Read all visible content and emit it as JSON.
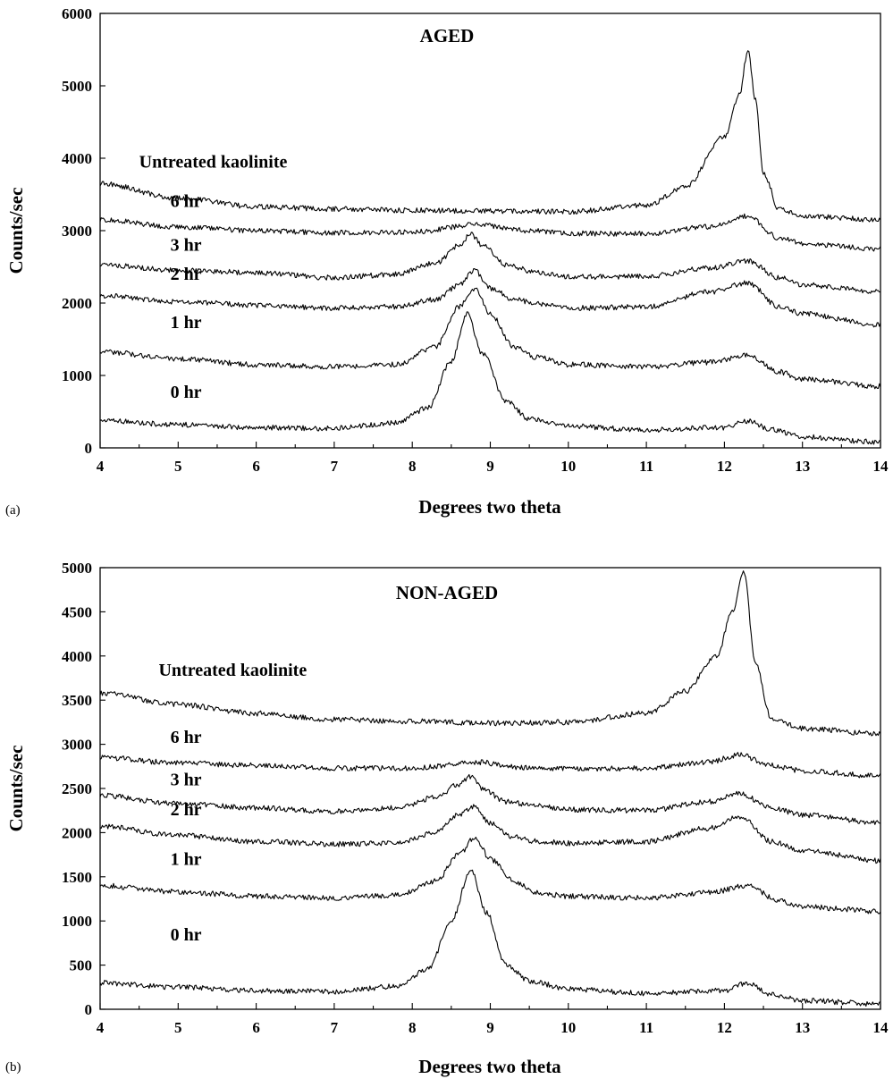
{
  "chart_data": [
    {
      "type": "line",
      "panel_label": "(a)",
      "title": "AGED",
      "xlabel": "Degrees two theta",
      "ylabel": "Counts/sec",
      "xlim": [
        4,
        14
      ],
      "ylim": [
        0,
        6000
      ],
      "x_ticks": [
        4,
        5,
        6,
        7,
        8,
        9,
        10,
        11,
        12,
        13,
        14
      ],
      "y_ticks": [
        0,
        1000,
        2000,
        3000,
        4000,
        5000,
        6000
      ],
      "grid": false,
      "series": [
        {
          "name": "Untreated kaolinite",
          "x": [
            4,
            5,
            6,
            7,
            8,
            9,
            10,
            11,
            11.5,
            12,
            12.2,
            12.3,
            12.4,
            12.5,
            12.7,
            13,
            14
          ],
          "y": [
            3650,
            3450,
            3330,
            3300,
            3280,
            3270,
            3260,
            3350,
            3600,
            4300,
            4900,
            5500,
            4800,
            3800,
            3300,
            3200,
            3150
          ]
        },
        {
          "name": "6 hr",
          "x": [
            4,
            5,
            6,
            7,
            8,
            8.8,
            9.5,
            10,
            11,
            11.8,
            12.3,
            12.7,
            13,
            14
          ],
          "y": [
            3150,
            3050,
            3000,
            2970,
            2980,
            3080,
            3000,
            2960,
            2960,
            3050,
            3200,
            2900,
            2820,
            2750
          ]
        },
        {
          "name": "3 hr",
          "x": [
            4,
            5,
            6,
            7,
            7.8,
            8.3,
            8.6,
            8.75,
            8.9,
            9.2,
            9.6,
            10,
            11,
            11.8,
            12.3,
            12.7,
            13,
            14
          ],
          "y": [
            2530,
            2450,
            2420,
            2350,
            2400,
            2550,
            2800,
            2950,
            2800,
            2530,
            2420,
            2360,
            2370,
            2480,
            2580,
            2350,
            2250,
            2160
          ]
        },
        {
          "name": "2 hr",
          "x": [
            4,
            5,
            6,
            7,
            7.8,
            8.3,
            8.6,
            8.8,
            9,
            9.3,
            9.6,
            10,
            11,
            11.8,
            12.3,
            12.7,
            13,
            14
          ],
          "y": [
            2100,
            2020,
            1970,
            1930,
            1950,
            2050,
            2250,
            2450,
            2200,
            2050,
            1990,
            1930,
            1950,
            2150,
            2280,
            1950,
            1850,
            1700
          ]
        },
        {
          "name": "1 hr",
          "x": [
            4,
            5,
            6,
            7,
            7.8,
            8.3,
            8.6,
            8.8,
            9,
            9.3,
            9.6,
            10,
            11,
            11.8,
            12.3,
            12.7,
            13,
            14
          ],
          "y": [
            1330,
            1230,
            1150,
            1120,
            1150,
            1400,
            1950,
            2200,
            1850,
            1400,
            1250,
            1150,
            1120,
            1180,
            1280,
            1050,
            950,
            850
          ]
        },
        {
          "name": "0 hr",
          "x": [
            4,
            5,
            6,
            7,
            7.8,
            8.2,
            8.5,
            8.7,
            8.9,
            9.2,
            9.5,
            10,
            11,
            12,
            12.3,
            12.6,
            13,
            14
          ],
          "y": [
            380,
            320,
            280,
            270,
            350,
            550,
            1200,
            1850,
            1300,
            650,
            400,
            300,
            250,
            280,
            370,
            250,
            150,
            80
          ]
        }
      ]
    },
    {
      "type": "line",
      "panel_label": "(b)",
      "title": "NON-AGED",
      "xlabel": "Degrees two theta",
      "ylabel": "Counts/sec",
      "xlim": [
        4,
        14
      ],
      "ylim": [
        0,
        5000
      ],
      "x_ticks": [
        4,
        5,
        6,
        7,
        8,
        9,
        10,
        11,
        12,
        13,
        14
      ],
      "y_ticks": [
        0,
        500,
        1000,
        1500,
        2000,
        2500,
        3000,
        3500,
        4000,
        4500,
        5000
      ],
      "grid": false,
      "series": [
        {
          "name": "Untreated kaolinite",
          "x": [
            4,
            5,
            6,
            7,
            8,
            9,
            10,
            11,
            11.5,
            11.9,
            12.1,
            12.25,
            12.4,
            12.6,
            13,
            14
          ],
          "y": [
            3580,
            3450,
            3350,
            3280,
            3260,
            3240,
            3250,
            3350,
            3600,
            4000,
            4500,
            4950,
            3900,
            3300,
            3180,
            3120
          ]
        },
        {
          "name": "6 hr",
          "x": [
            4,
            5,
            6,
            7,
            8,
            8.8,
            9.5,
            10,
            11,
            11.8,
            12.2,
            12.6,
            13,
            14
          ],
          "y": [
            2850,
            2790,
            2760,
            2730,
            2730,
            2800,
            2730,
            2720,
            2730,
            2800,
            2880,
            2760,
            2700,
            2640
          ]
        },
        {
          "name": "3 hr",
          "x": [
            4,
            5,
            6,
            7,
            7.8,
            8.3,
            8.6,
            8.75,
            8.9,
            9.2,
            9.6,
            10,
            11,
            11.8,
            12.2,
            12.6,
            13,
            14
          ],
          "y": [
            2420,
            2330,
            2280,
            2240,
            2280,
            2400,
            2550,
            2640,
            2500,
            2350,
            2300,
            2260,
            2250,
            2350,
            2440,
            2280,
            2200,
            2110
          ]
        },
        {
          "name": "2 hr",
          "x": [
            4,
            5,
            6,
            7,
            7.8,
            8.3,
            8.6,
            8.8,
            9,
            9.3,
            9.6,
            10,
            11,
            11.8,
            12.2,
            12.6,
            13,
            14
          ],
          "y": [
            2070,
            1970,
            1900,
            1870,
            1880,
            2000,
            2200,
            2300,
            2100,
            1950,
            1900,
            1880,
            1900,
            2050,
            2180,
            1900,
            1800,
            1680
          ]
        },
        {
          "name": "1 hr",
          "x": [
            4,
            5,
            6,
            7,
            7.8,
            8.3,
            8.6,
            8.8,
            9,
            9.3,
            9.6,
            10,
            11,
            11.8,
            12.3,
            12.7,
            13,
            14
          ],
          "y": [
            1400,
            1330,
            1280,
            1260,
            1290,
            1450,
            1750,
            1950,
            1700,
            1450,
            1320,
            1280,
            1260,
            1320,
            1400,
            1230,
            1160,
            1110
          ]
        },
        {
          "name": "0 hr",
          "x": [
            4,
            5,
            6,
            7,
            7.8,
            8.2,
            8.5,
            8.75,
            8.95,
            9.2,
            9.5,
            10,
            11,
            12,
            12.3,
            12.6,
            13,
            14
          ],
          "y": [
            300,
            250,
            210,
            200,
            260,
            450,
            1000,
            1580,
            1100,
            500,
            320,
            230,
            180,
            210,
            300,
            170,
            100,
            60
          ]
        }
      ]
    }
  ]
}
